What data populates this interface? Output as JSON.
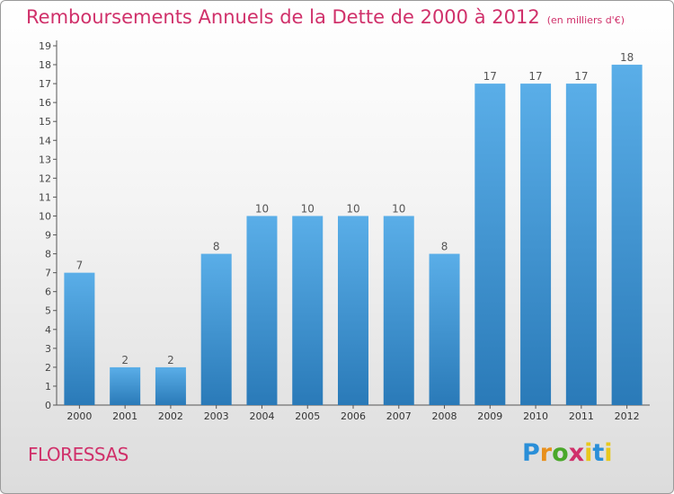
{
  "header": {
    "title": "Remboursements Annuels de la Dette de 2000 à 2012",
    "subtitle": "(en milliers d'€)"
  },
  "footer": {
    "commune": "FLORESSAS",
    "logo_text": "Proxiti"
  },
  "colors": {
    "accent": "#d0306a",
    "bar_top": "#5aaee8",
    "bar_bottom": "#2a7ab8"
  },
  "chart_data": {
    "type": "bar",
    "categories": [
      "2000",
      "2001",
      "2002",
      "2003",
      "2004",
      "2005",
      "2006",
      "2007",
      "2008",
      "2009",
      "2010",
      "2011",
      "2012"
    ],
    "values": [
      7,
      2,
      2,
      8,
      10,
      10,
      10,
      10,
      8,
      17,
      17,
      17,
      18
    ],
    "title": "Remboursements Annuels de la Dette de 2000 à 2012",
    "ylim": [
      0,
      19
    ],
    "yticks": [
      0,
      1,
      2,
      3,
      4,
      5,
      6,
      7,
      8,
      9,
      10,
      11,
      12,
      13,
      14,
      15,
      16,
      17,
      18,
      19
    ],
    "grid": false
  }
}
